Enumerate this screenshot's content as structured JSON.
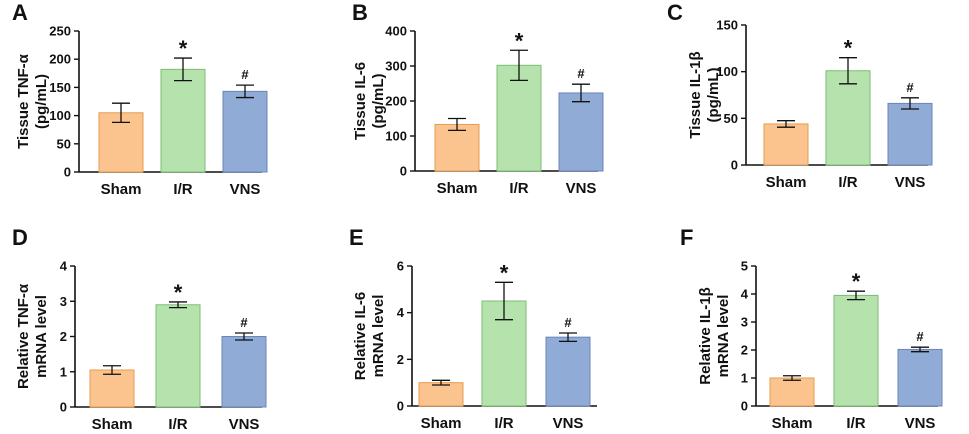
{
  "figure": {
    "colors": {
      "Sham": {
        "fill": "#fbc38e",
        "stroke": "#e59c52"
      },
      "I/R": {
        "fill": "#b6e2ad",
        "stroke": "#7dbd73"
      },
      "VNS": {
        "fill": "#91abd7",
        "stroke": "#6a86b8"
      }
    }
  },
  "chart_data": [
    {
      "panel": "A",
      "type": "bar",
      "categories": [
        "Sham",
        "I/R",
        "VNS"
      ],
      "values": [
        105,
        182,
        143
      ],
      "errors": [
        17,
        20,
        11
      ],
      "annotations": [
        "",
        "*",
        "#"
      ],
      "ylabel": [
        "Tissue TNF-α",
        "(pg/mL)"
      ],
      "ylim": [
        0,
        250
      ],
      "yticks": [
        0,
        50,
        100,
        150,
        200,
        250
      ]
    },
    {
      "panel": "B",
      "type": "bar",
      "categories": [
        "Sham",
        "I/R",
        "VNS"
      ],
      "values": [
        133,
        302,
        223
      ],
      "errors": [
        17,
        43,
        25
      ],
      "annotations": [
        "",
        "*",
        "#"
      ],
      "ylabel": [
        "Tissue IL-6",
        "(pg/mL)"
      ],
      "ylim": [
        0,
        400
      ],
      "yticks": [
        0,
        100,
        200,
        300,
        400
      ]
    },
    {
      "panel": "C",
      "type": "bar",
      "categories": [
        "Sham",
        "I/R",
        "VNS"
      ],
      "values": [
        44,
        101,
        66
      ],
      "errors": [
        3.5,
        14,
        6
      ],
      "annotations": [
        "",
        "*",
        "#"
      ],
      "ylabel": [
        "Tissue IL-1β",
        "(pg/mL)"
      ],
      "ylim": [
        0,
        150
      ],
      "yticks": [
        0,
        50,
        100,
        150
      ]
    },
    {
      "panel": "D",
      "type": "bar",
      "categories": [
        "Sham",
        "I/R",
        "VNS"
      ],
      "values": [
        1.05,
        2.9,
        2.0
      ],
      "errors": [
        0.12,
        0.08,
        0.1
      ],
      "annotations": [
        "",
        "*",
        "#"
      ],
      "ylabel": [
        "Relative TNF-α",
        "mRNA level"
      ],
      "ylim": [
        0,
        4
      ],
      "yticks": [
        0,
        1,
        2,
        3,
        4
      ]
    },
    {
      "panel": "E",
      "type": "bar",
      "categories": [
        "Sham",
        "I/R",
        "VNS"
      ],
      "values": [
        1.0,
        4.5,
        2.95
      ],
      "errors": [
        0.1,
        0.8,
        0.18
      ],
      "annotations": [
        "",
        "*",
        "#"
      ],
      "ylabel": [
        "Relative IL-6",
        "mRNA level"
      ],
      "ylim": [
        0,
        6
      ],
      "yticks": [
        0,
        2,
        4,
        6
      ]
    },
    {
      "panel": "F",
      "type": "bar",
      "categories": [
        "Sham",
        "I/R",
        "VNS"
      ],
      "values": [
        1.0,
        3.95,
        2.02
      ],
      "errors": [
        0.08,
        0.15,
        0.08
      ],
      "annotations": [
        "",
        "*",
        "#"
      ],
      "ylabel": [
        "Relative IL-1β",
        "mRNA level"
      ],
      "ylim": [
        0,
        5
      ],
      "yticks": [
        0,
        1,
        2,
        3,
        4,
        5
      ]
    }
  ]
}
